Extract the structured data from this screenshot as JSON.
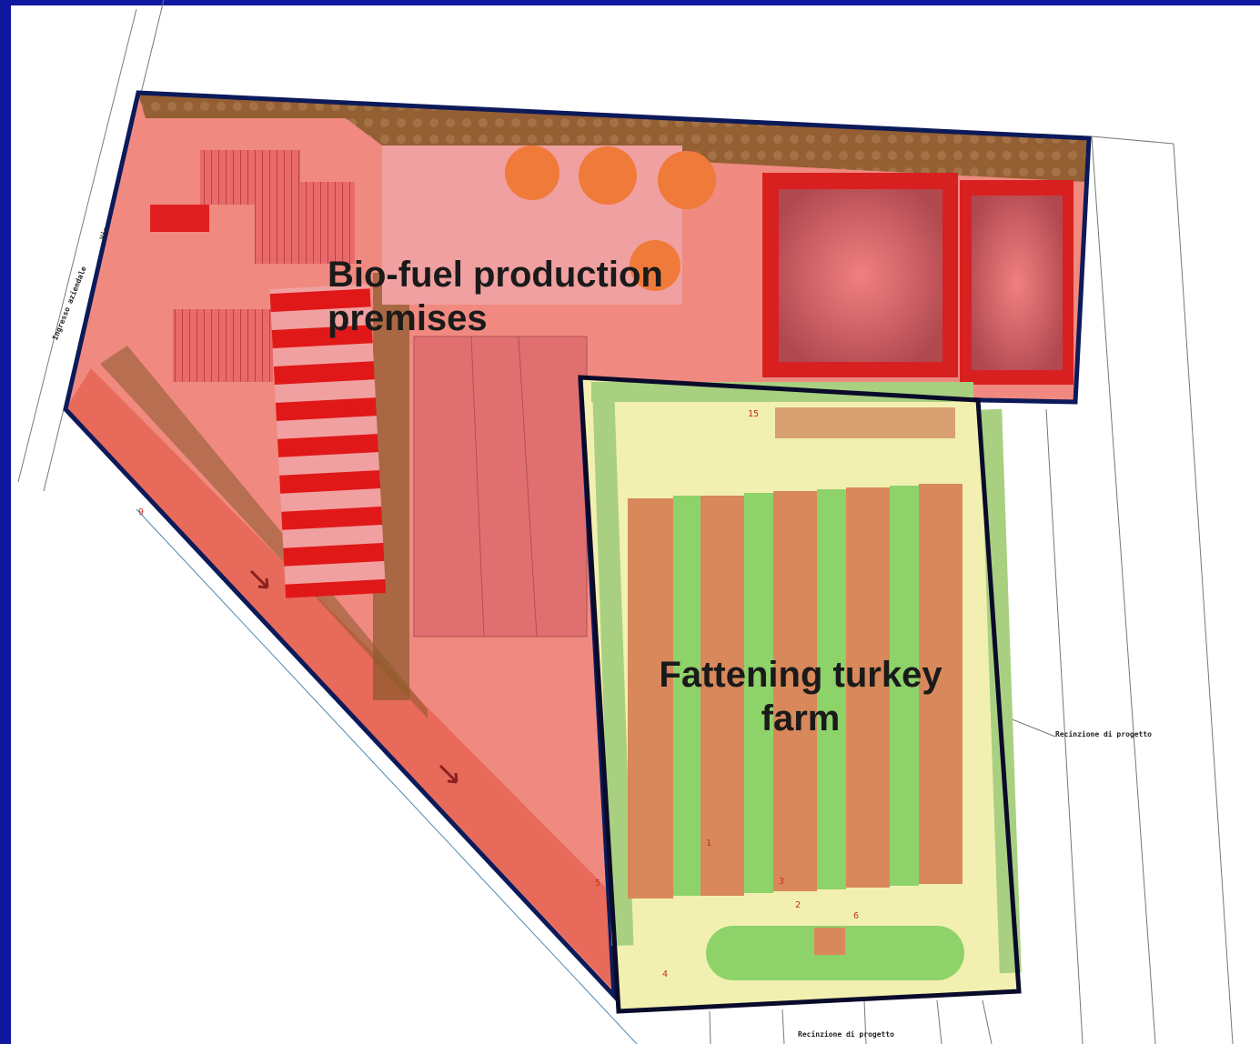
{
  "zones": {
    "biofuel": {
      "label_line1": "Bio-fuel production",
      "label_line2": "premises",
      "fill": "#f07070",
      "outline": "#0c1a5a"
    },
    "turkey_farm": {
      "label_line1": "Fattening turkey",
      "label_line2": "farm",
      "fill": "#e8f0a0",
      "outline": "#0a0a2a"
    }
  },
  "plan_notes": {
    "fence_right": "Recinzione di progetto",
    "fence_bottom": "Recinzione di progetto",
    "road_1": "Ingresso aziendale",
    "road_2": "Via"
  },
  "plan_markers": [
    "1",
    "2",
    "3",
    "4",
    "5",
    "6",
    "9",
    "15"
  ],
  "colors": {
    "frame": "#1018a0",
    "hedge": "#7a5a2a",
    "tank": "#f07a3a",
    "lagoon": "#d82020",
    "barn_roof": "#d8885a",
    "grass_strip": "#8ed26a"
  }
}
